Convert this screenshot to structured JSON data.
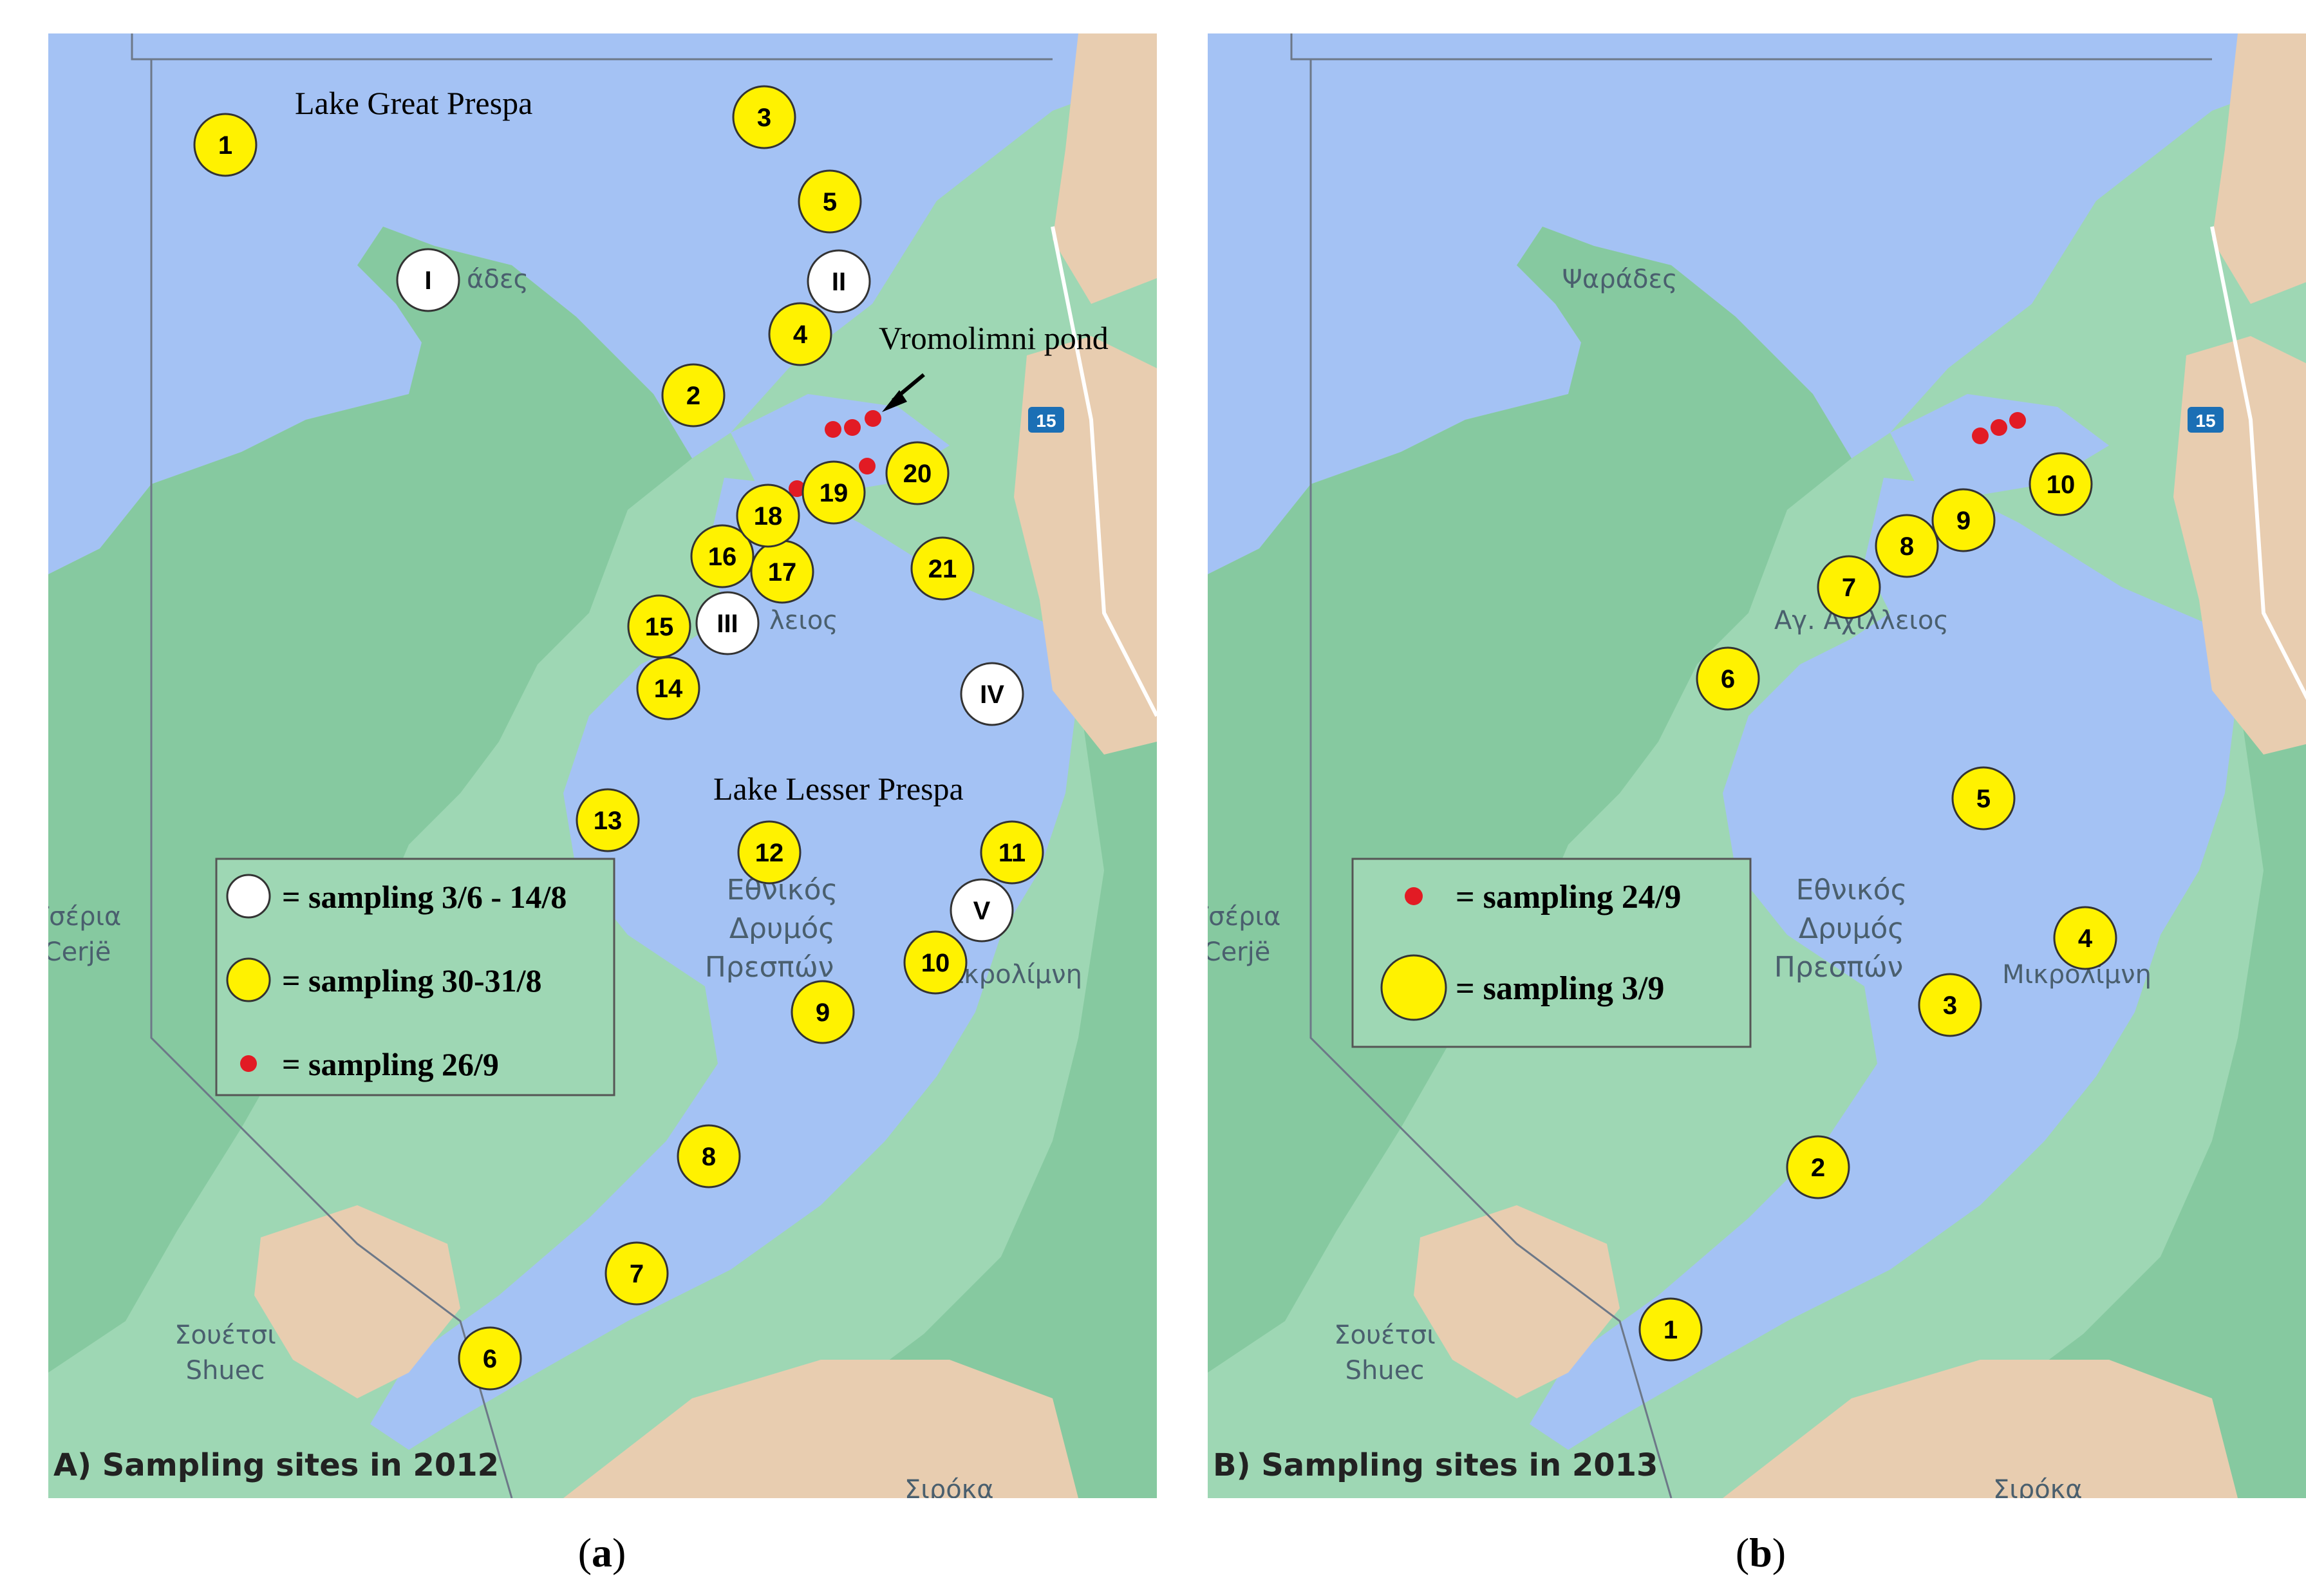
{
  "colors": {
    "water": "#a4c2f4",
    "land": "#9ed7b4",
    "forest": "#6fba8d",
    "sand": "#e8cdb0",
    "marker_yellow": "#fff200",
    "marker_white": "#ffffff",
    "pond_dot": "#e21b24",
    "road_badge": "#1b6fb5"
  },
  "panel_a": {
    "map_labels": {
      "lake_great": "Lake Great Prespa",
      "lake_lesser": "Lake Lesser Prespa",
      "pond": "Vromolimni pond",
      "psarades_tail": "άδες",
      "agios_tail": "λειος",
      "ethnikos": "Εθνικός",
      "drymos": "Δρυμός",
      "prespon": "Πρεσπών",
      "mikrolimni": "Μικρολίμνη",
      "tseria": "Τσέρια",
      "cerje": "Cerjë",
      "soueitsi": "Σουέτσι",
      "shuec": "Shuec",
      "road": "15",
      "bottom": "Σιρόκα"
    },
    "panel_label": "A) Sampling sites in 2012",
    "legend": {
      "white": "= sampling 3/6 - 14/8",
      "yellow": "= sampling 30-31/8",
      "red": "= sampling 26/9"
    },
    "sites_2012_yellow": [
      "1",
      "2",
      "3",
      "4",
      "5",
      "6",
      "7",
      "8",
      "9",
      "10",
      "11",
      "12",
      "13",
      "14",
      "15",
      "16",
      "17",
      "18",
      "19",
      "20",
      "21"
    ],
    "sites_2012_white": [
      "I",
      "II",
      "III",
      "IV",
      "V"
    ],
    "pond_dot_count": 5
  },
  "panel_b": {
    "map_labels": {
      "psarades": "Ψαράδες",
      "agios": "Αγ. Αχίλλειος",
      "ethnikos": "Εθνικός",
      "drymos": "Δρυμός",
      "prespon": "Πρεσπών",
      "mikrolimni": "Μικρολίμνη",
      "tseria": "Τσέρια",
      "cerje": "Cerjë",
      "soueitsi": "Σουέτσι",
      "shuec": "Shuec",
      "road": "15",
      "bottom": "Σιρόκα"
    },
    "panel_label": "B) Sampling sites in 2013",
    "legend": {
      "red": "= sampling 24/9",
      "yellow": "= sampling  3/9"
    },
    "sites_2013_yellow": [
      "1",
      "2",
      "3",
      "4",
      "5",
      "6",
      "7",
      "8",
      "9",
      "10"
    ],
    "pond_dot_count": 3
  },
  "captions": {
    "a": "a",
    "b": "b"
  }
}
